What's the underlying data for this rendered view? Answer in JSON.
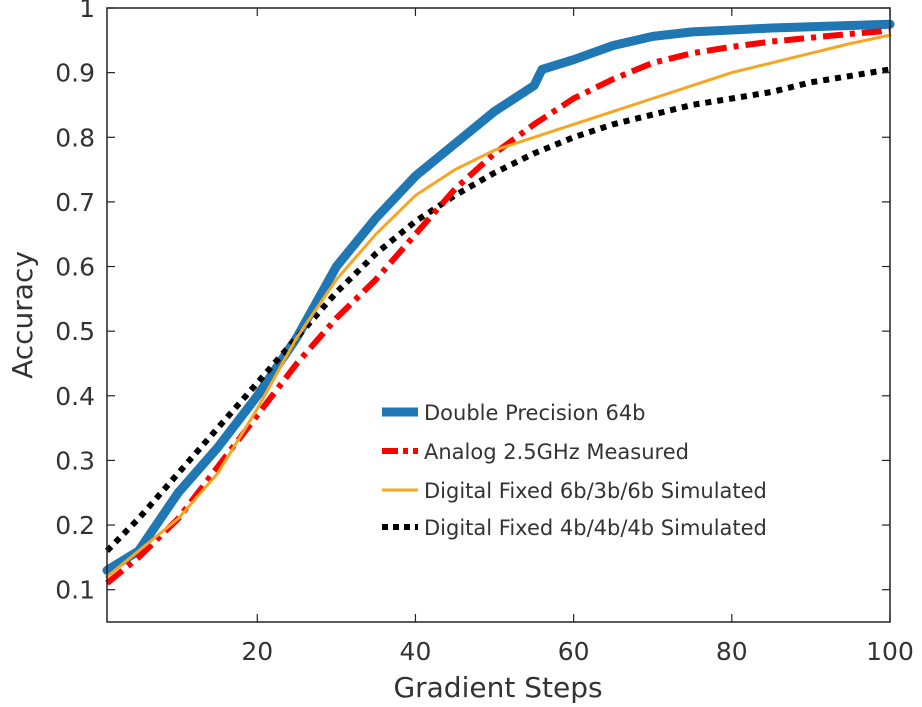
{
  "chart_data": {
    "type": "line",
    "title": "",
    "xlabel": "Gradient Steps",
    "ylabel": "Accuracy",
    "xlim": [
      1,
      100
    ],
    "ylim": [
      0.05,
      1.0
    ],
    "xticks": [
      20,
      40,
      60,
      80,
      100
    ],
    "xtick_labels": [
      "20",
      "40",
      "60",
      "80",
      "100"
    ],
    "yticks": [
      0.1,
      0.2,
      0.3,
      0.4,
      0.5,
      0.6,
      0.7,
      0.8,
      0.9,
      1.0
    ],
    "ytick_labels": [
      "0.1",
      "0.2",
      "0.3",
      "0.4",
      "0.5",
      "0.6",
      "0.7",
      "0.8",
      "0.9",
      "1"
    ],
    "grid": false,
    "legend_position": "center-right",
    "series": [
      {
        "name": "Double Precision 64b",
        "color": "#1f77b4",
        "style": "solid-thick",
        "points": [
          [
            1,
            0.13
          ],
          [
            5,
            0.16
          ],
          [
            10,
            0.25
          ],
          [
            15,
            0.32
          ],
          [
            20,
            0.4
          ],
          [
            25,
            0.49
          ],
          [
            30,
            0.6
          ],
          [
            35,
            0.675
          ],
          [
            40,
            0.74
          ],
          [
            45,
            0.79
          ],
          [
            50,
            0.84
          ],
          [
            55,
            0.88
          ],
          [
            56,
            0.905
          ],
          [
            60,
            0.92
          ],
          [
            65,
            0.942
          ],
          [
            70,
            0.956
          ],
          [
            75,
            0.963
          ],
          [
            80,
            0.966
          ],
          [
            85,
            0.969
          ],
          [
            90,
            0.971
          ],
          [
            95,
            0.973
          ],
          [
            100,
            0.975
          ]
        ]
      },
      {
        "name": "Analog 2.5GHz Measured",
        "color": "#ff0000",
        "style": "dashdot",
        "points": [
          [
            1,
            0.11
          ],
          [
            5,
            0.15
          ],
          [
            10,
            0.21
          ],
          [
            15,
            0.29
          ],
          [
            20,
            0.37
          ],
          [
            25,
            0.45
          ],
          [
            30,
            0.52
          ],
          [
            35,
            0.58
          ],
          [
            40,
            0.65
          ],
          [
            45,
            0.72
          ],
          [
            50,
            0.775
          ],
          [
            55,
            0.82
          ],
          [
            60,
            0.86
          ],
          [
            65,
            0.89
          ],
          [
            70,
            0.915
          ],
          [
            75,
            0.93
          ],
          [
            80,
            0.94
          ],
          [
            85,
            0.948
          ],
          [
            90,
            0.954
          ],
          [
            95,
            0.96
          ],
          [
            100,
            0.965
          ]
        ]
      },
      {
        "name": "Digital Fixed 6b/3b/6b Simulated",
        "color": "#f5a623",
        "style": "solid-thin",
        "points": [
          [
            1,
            0.12
          ],
          [
            5,
            0.16
          ],
          [
            10,
            0.21
          ],
          [
            15,
            0.28
          ],
          [
            20,
            0.38
          ],
          [
            25,
            0.49
          ],
          [
            30,
            0.58
          ],
          [
            35,
            0.65
          ],
          [
            40,
            0.71
          ],
          [
            45,
            0.75
          ],
          [
            50,
            0.78
          ],
          [
            55,
            0.8
          ],
          [
            60,
            0.82
          ],
          [
            65,
            0.84
          ],
          [
            70,
            0.86
          ],
          [
            75,
            0.88
          ],
          [
            80,
            0.9
          ],
          [
            85,
            0.915
          ],
          [
            90,
            0.93
          ],
          [
            95,
            0.945
          ],
          [
            100,
            0.958
          ]
        ]
      },
      {
        "name": "Digital Fixed 4b/4b/4b Simulated",
        "color": "#000000",
        "style": "dotted",
        "points": [
          [
            1,
            0.16
          ],
          [
            5,
            0.21
          ],
          [
            10,
            0.28
          ],
          [
            15,
            0.35
          ],
          [
            20,
            0.42
          ],
          [
            25,
            0.49
          ],
          [
            30,
            0.56
          ],
          [
            35,
            0.62
          ],
          [
            40,
            0.67
          ],
          [
            45,
            0.71
          ],
          [
            50,
            0.745
          ],
          [
            55,
            0.775
          ],
          [
            60,
            0.8
          ],
          [
            65,
            0.82
          ],
          [
            70,
            0.835
          ],
          [
            75,
            0.85
          ],
          [
            80,
            0.86
          ],
          [
            85,
            0.87
          ],
          [
            90,
            0.885
          ],
          [
            95,
            0.895
          ],
          [
            100,
            0.905
          ]
        ]
      }
    ]
  }
}
